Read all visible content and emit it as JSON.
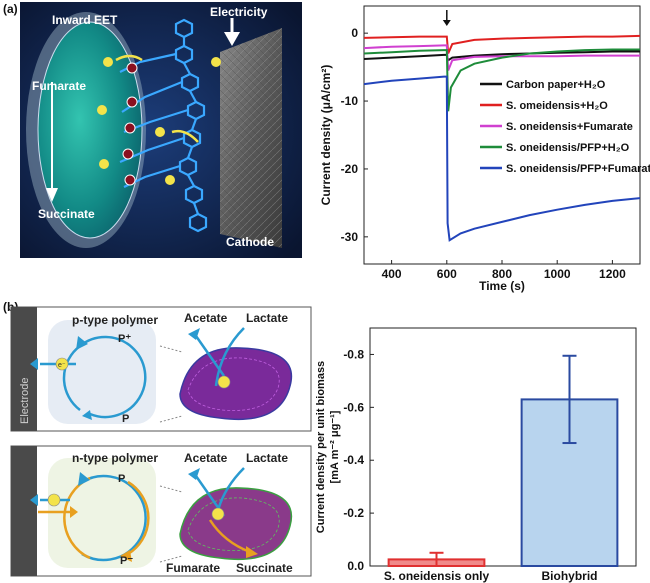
{
  "panels": {
    "a": "(a)",
    "b": "(b)"
  },
  "illustration_a": {
    "inward_eet": "Inward EET",
    "electricity": "Electricity",
    "fumarate": "Fumarate",
    "succinate": "Succinate",
    "cathode": "Cathode",
    "electron": "e⁻"
  },
  "schematic_b": {
    "p_type_title": "p-type polymer",
    "n_type_title": "n-type polymer",
    "p_plus": "P⁺",
    "p_plain": "P",
    "p_minus": "P⁻",
    "electrode": "Electrode",
    "acetate": "Acetate",
    "lactate": "Lactate",
    "fumarate": "Fumarate",
    "succinate": "Succinate",
    "electron": "e⁻"
  },
  "chart_data": [
    {
      "type": "line",
      "xlabel": "Time (s)",
      "ylabel": "Current density (μA/cm²)",
      "xlim": [
        300,
        1300
      ],
      "ylim": [
        -34,
        4
      ],
      "xticks": [
        400,
        600,
        800,
        1000,
        1200
      ],
      "yticks": [
        0,
        -10,
        -20,
        -30
      ],
      "annotation": "arrow at 600 s",
      "legend_position": "right-middle",
      "series": [
        {
          "name": "Carbon paper+H₂O",
          "color": "#111111",
          "x": [
            300,
            400,
            500,
            590,
            600,
            605,
            620,
            700,
            800,
            900,
            1000,
            1100,
            1200,
            1300
          ],
          "y": [
            -3.8,
            -3.6,
            -3.4,
            -3.2,
            -3.2,
            -4.0,
            -3.6,
            -3.3,
            -3.1,
            -3.0,
            -2.9,
            -2.8,
            -2.7,
            -2.7
          ]
        },
        {
          "name": "S. omeidensis+H₂O",
          "color": "#e02020",
          "x": [
            300,
            400,
            500,
            590,
            600,
            605,
            620,
            700,
            800,
            900,
            1000,
            1100,
            1200,
            1300
          ],
          "y": [
            -0.7,
            -0.6,
            -0.5,
            -0.5,
            -0.5,
            -3.0,
            -1.6,
            -1.0,
            -0.8,
            -0.7,
            -0.6,
            -0.5,
            -0.5,
            -0.4
          ]
        },
        {
          "name": "S. oneidensis+Fumarate",
          "color": "#d040d0",
          "x": [
            300,
            400,
            500,
            590,
            600,
            605,
            620,
            700,
            800,
            900,
            1000,
            1100,
            1200,
            1300
          ],
          "y": [
            -2.2,
            -2.0,
            -1.9,
            -1.8,
            -1.8,
            -5.5,
            -4.0,
            -3.5,
            -3.4,
            -3.4,
            -3.4,
            -3.3,
            -3.3,
            -3.3
          ]
        },
        {
          "name": "S. oneidensis/PFP+H₂O",
          "color": "#1e8c3a",
          "x": [
            300,
            400,
            500,
            590,
            600,
            605,
            615,
            650,
            700,
            800,
            900,
            1000,
            1100,
            1200,
            1300
          ],
          "y": [
            -3.0,
            -2.8,
            -2.6,
            -2.5,
            -2.5,
            -11.5,
            -8.0,
            -5.5,
            -4.5,
            -3.6,
            -3.0,
            -2.7,
            -2.5,
            -2.4,
            -2.4
          ]
        },
        {
          "name": "S. oneidensis/PFP+Fumarate",
          "color": "#2244bb",
          "x": [
            300,
            400,
            500,
            590,
            600,
            603,
            610,
            650,
            700,
            800,
            900,
            1000,
            1100,
            1200,
            1300
          ],
          "y": [
            -7.5,
            -7.0,
            -6.7,
            -6.4,
            -6.4,
            -28.0,
            -30.5,
            -29.5,
            -28.8,
            -27.8,
            -26.8,
            -26.0,
            -25.3,
            -24.7,
            -24.3
          ]
        }
      ]
    },
    {
      "type": "bar",
      "ylabel": "Current density per unit biomass [mA m⁻² μg⁻¹]",
      "ylim": [
        0,
        -0.9
      ],
      "yticks": [
        0.0,
        -0.2,
        -0.4,
        -0.6,
        -0.8
      ],
      "ytick_labels": [
        "0.0",
        "-0.2",
        "-0.4",
        "-0.6",
        "-0.8"
      ],
      "categories": [
        "S. oneidensis only",
        "Biohybrid"
      ],
      "values": [
        -0.025,
        -0.63
      ],
      "errors": [
        0.025,
        0.165
      ],
      "colors": [
        "#f08a8a",
        "#b8d4ee"
      ],
      "edge_colors": [
        "#e03030",
        "#2a4aa0"
      ]
    }
  ]
}
